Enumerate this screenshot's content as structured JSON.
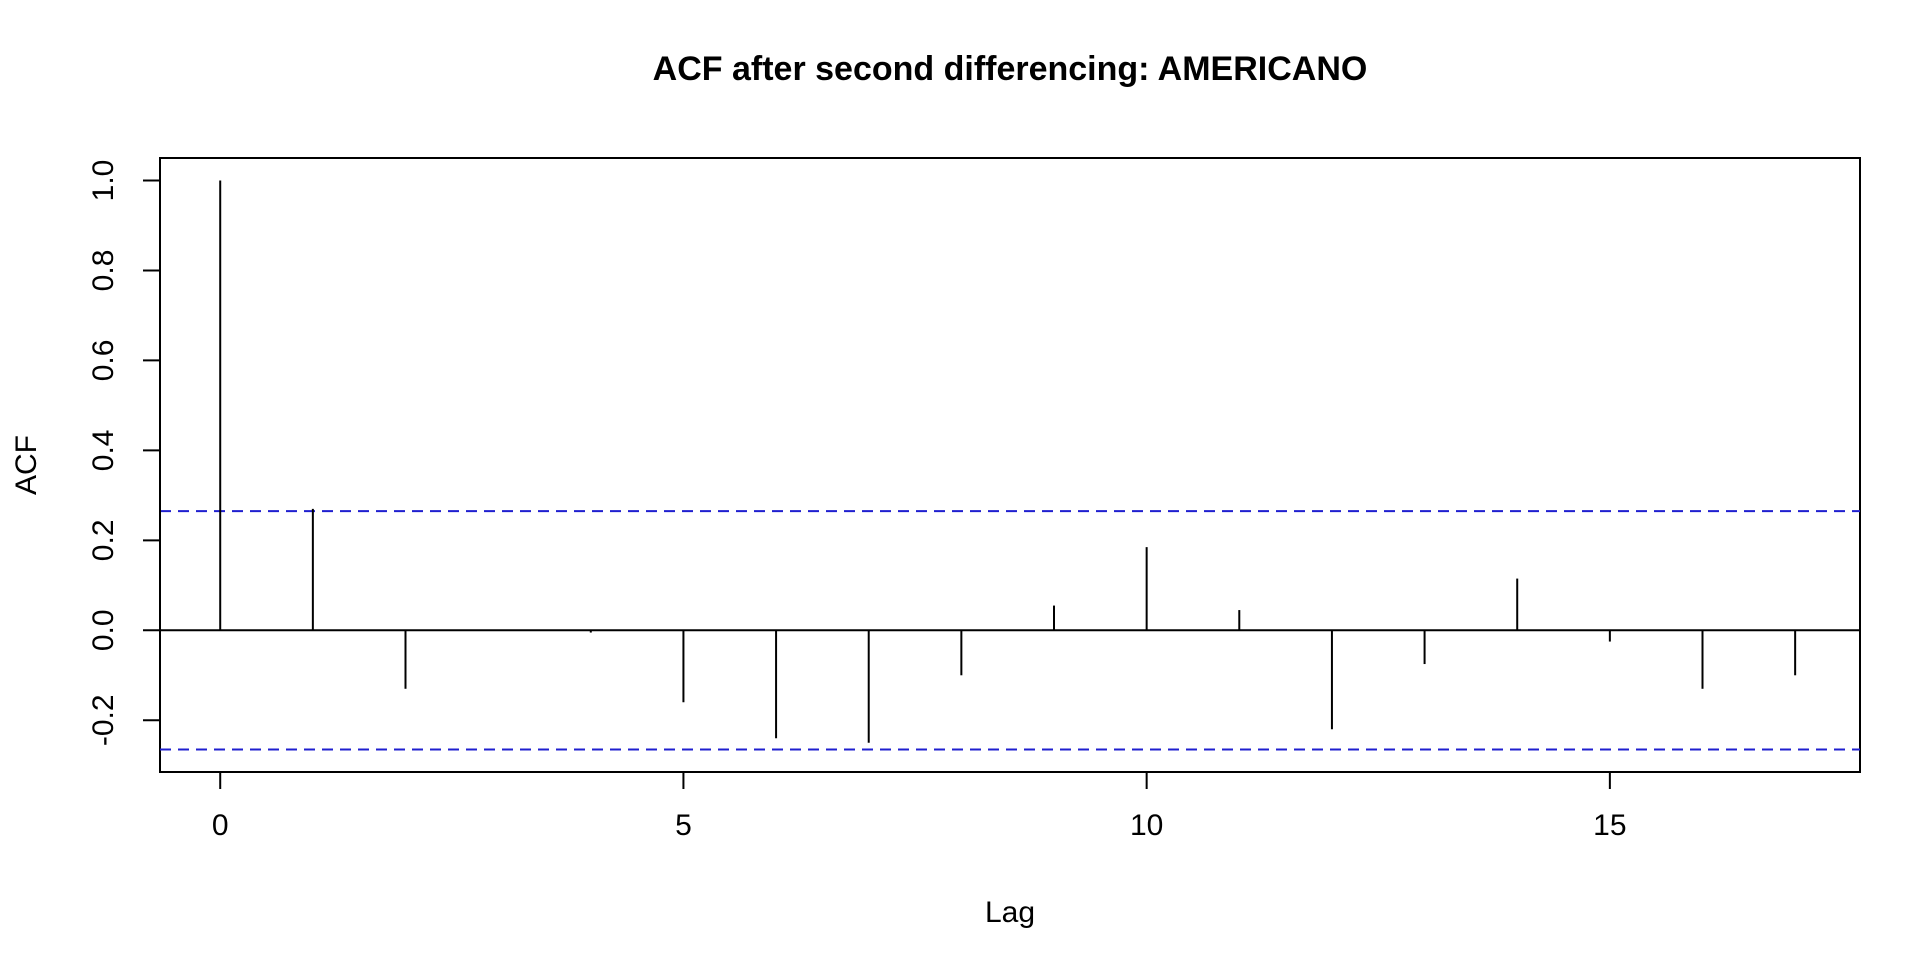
{
  "chart_data": {
    "type": "bar",
    "title": "ACF after second differencing: AMERICANO",
    "xlabel": "Lag",
    "ylabel": "ACF",
    "x": [
      0,
      1,
      2,
      3,
      4,
      5,
      6,
      7,
      8,
      9,
      10,
      11,
      12,
      13,
      14,
      15,
      16,
      17
    ],
    "values": [
      1.0,
      0.27,
      -0.13,
      0.0,
      -0.005,
      -0.16,
      -0.24,
      -0.25,
      -0.1,
      0.055,
      0.185,
      0.045,
      -0.22,
      -0.075,
      0.115,
      -0.025,
      -0.13,
      -0.1
    ],
    "xlim": [
      -0.65,
      17.7
    ],
    "ylim": [
      -0.315,
      1.05
    ],
    "xticks": [
      0,
      5,
      10,
      15
    ],
    "yticks": [
      -0.2,
      0.0,
      0.2,
      0.4,
      0.6,
      0.8,
      1.0
    ],
    "ytick_labels": [
      "-0.2",
      "0.0",
      "0.2",
      "0.4",
      "0.6",
      "0.8",
      "1.0"
    ],
    "xtick_labels": [
      "0",
      "5",
      "10",
      "15"
    ],
    "confidence_band": 0.265,
    "band_color": "#1f1fcf",
    "spike_color": "#000000",
    "grid": false,
    "legend": "none"
  }
}
